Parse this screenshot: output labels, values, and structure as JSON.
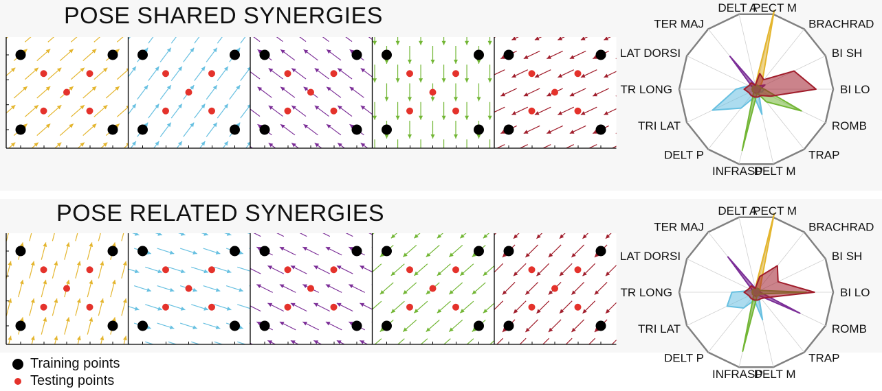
{
  "figure": {
    "sections": [
      {
        "id": "shared",
        "title": "POSE SHARED SYNERGIES"
      },
      {
        "id": "related",
        "title": "POSE RELATED SYNERGIES"
      }
    ],
    "legend": {
      "training_label": "Training points",
      "testing_label": "Testing points"
    },
    "colors": {
      "training": "#000000",
      "testing": "#e4322b",
      "synergies": [
        "#e4b52d",
        "#67c0e1",
        "#7b2d97",
        "#72b634",
        "#a01d2b"
      ],
      "radar_frame": "#808080",
      "radar_grid": "#cfcfcf"
    },
    "synergy_count": 5
  },
  "muscles": [
    "DELT A",
    "PECT M",
    "BRACHRAD",
    "BI SH",
    "BI LO",
    "ROMB",
    "TRAP",
    "DELT M",
    "INFRASP",
    "DELT P",
    "TRI LAT",
    "TR LONG",
    "LAT DORSI",
    "TER MAJ"
  ],
  "chart_data": [
    {
      "type": "radar",
      "section": "POSE SHARED SYNERGIES",
      "categories": [
        "DELT A",
        "PECT M",
        "BRACHRAD",
        "BI SH",
        "BI LO",
        "ROMB",
        "TRAP",
        "DELT M",
        "INFRASP",
        "DELT P",
        "TRI LAT",
        "TR LONG",
        "LAT DORSI",
        "TER MAJ"
      ],
      "rmax": 1.0,
      "series": [
        {
          "color": "#e4b52d",
          "values": [
            0.05,
            1.0,
            0.12,
            0.05,
            0.05,
            0.03,
            0.05,
            0.05,
            0.05,
            0.05,
            0.05,
            0.05,
            0.03,
            0.03
          ]
        },
        {
          "color": "#67c0e1",
          "values": [
            0.05,
            0.05,
            0.05,
            0.05,
            0.1,
            0.08,
            0.05,
            0.32,
            0.1,
            0.3,
            0.6,
            0.25,
            0.1,
            0.05
          ]
        },
        {
          "color": "#7b2d97",
          "values": [
            0.05,
            0.05,
            0.05,
            0.12,
            0.05,
            0.05,
            0.05,
            0.05,
            0.05,
            0.05,
            0.05,
            0.05,
            0.05,
            0.52
          ]
        },
        {
          "color": "#72b634",
          "values": [
            0.05,
            0.05,
            0.05,
            0.05,
            0.1,
            0.62,
            0.2,
            0.05,
            0.78,
            0.05,
            0.05,
            0.05,
            0.05,
            0.05
          ]
        },
        {
          "color": "#a01d2b",
          "values": [
            0.05,
            0.2,
            0.15,
            0.52,
            0.74,
            0.2,
            0.1,
            0.1,
            0.1,
            0.1,
            0.1,
            0.15,
            0.1,
            0.1
          ]
        }
      ]
    },
    {
      "type": "radar",
      "section": "POSE RELATED SYNERGIES",
      "categories": [
        "DELT A",
        "PECT M",
        "BRACHRAD",
        "BI SH",
        "BI LO",
        "ROMB",
        "TRAP",
        "DELT M",
        "INFRASP",
        "DELT P",
        "TRI LAT",
        "TR LONG",
        "LAT DORSI",
        "TER MAJ"
      ],
      "rmax": 1.0,
      "series": [
        {
          "color": "#e4b52d",
          "values": [
            0.05,
            1.0,
            0.08,
            0.05,
            0.05,
            0.03,
            0.05,
            0.05,
            0.05,
            0.05,
            0.05,
            0.05,
            0.03,
            0.03
          ]
        },
        {
          "color": "#67c0e1",
          "values": [
            0.05,
            0.05,
            0.05,
            0.05,
            0.05,
            0.05,
            0.05,
            0.35,
            0.1,
            0.25,
            0.4,
            0.3,
            0.05,
            0.05
          ]
        },
        {
          "color": "#7b2d97",
          "values": [
            0.05,
            0.05,
            0.05,
            0.05,
            0.05,
            0.6,
            0.05,
            0.05,
            0.05,
            0.05,
            0.05,
            0.05,
            0.05,
            0.56
          ]
        },
        {
          "color": "#72b634",
          "values": [
            0.05,
            0.05,
            0.05,
            0.05,
            0.62,
            0.05,
            0.05,
            0.05,
            0.75,
            0.05,
            0.05,
            0.05,
            0.05,
            0.05
          ]
        },
        {
          "color": "#a01d2b",
          "values": [
            0.05,
            0.2,
            0.42,
            0.3,
            0.72,
            0.15,
            0.1,
            0.1,
            0.1,
            0.1,
            0.1,
            0.15,
            0.1,
            0.1
          ]
        }
      ]
    }
  ],
  "vector_fields": {
    "training_points": [
      [
        0,
        1
      ],
      [
        1,
        1
      ],
      [
        0,
        0
      ],
      [
        1,
        0
      ]
    ],
    "testing_points": [
      [
        0.25,
        0.75
      ],
      [
        0.75,
        0.75
      ],
      [
        0.5,
        0.5
      ],
      [
        0.25,
        0.25
      ],
      [
        0.75,
        0.25
      ]
    ],
    "shared": [
      {
        "direction": [
          0.75,
          0.66
        ]
      },
      {
        "direction": [
          0.6,
          0.8
        ]
      },
      {
        "direction": [
          -0.8,
          0.6
        ]
      },
      {
        "direction": [
          0.0,
          -1.0
        ]
      },
      {
        "direction": [
          -0.9,
          -0.43
        ]
      }
    ],
    "related": [
      {
        "direction": [
          0.25,
          0.97
        ]
      },
      {
        "direction": [
          0.95,
          -0.3
        ]
      },
      {
        "direction": [
          -0.9,
          0.45
        ]
      },
      {
        "direction": [
          -0.75,
          -0.66
        ]
      },
      {
        "direction": [
          -0.7,
          -0.7
        ]
      }
    ]
  }
}
